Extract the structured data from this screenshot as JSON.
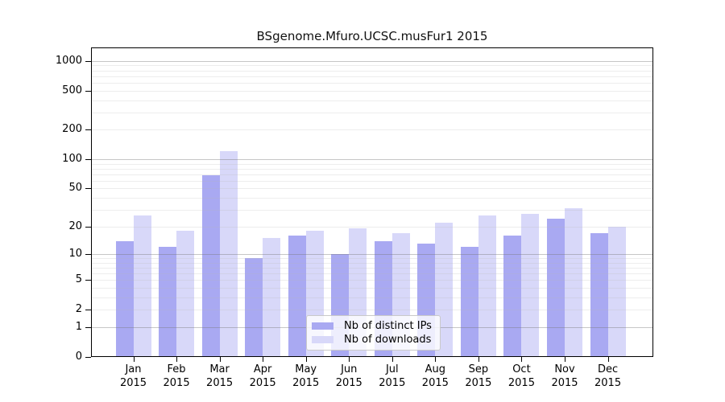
{
  "chart_data": {
    "type": "bar",
    "title": "BSgenome.Mfuro.UCSC.musFur1 2015",
    "categories": [
      "Jan",
      "Feb",
      "Mar",
      "Apr",
      "May",
      "Jun",
      "Jul",
      "Aug",
      "Sep",
      "Oct",
      "Nov",
      "Dec"
    ],
    "year": "2015",
    "series": [
      {
        "name": "Nb of distinct IPs",
        "color": "#a9a9f2",
        "values": [
          14,
          12,
          68,
          9,
          16,
          10,
          14,
          13,
          12,
          16,
          24,
          17
        ]
      },
      {
        "name": "Nb of downloads",
        "color": "#d8d8f9",
        "values": [
          26,
          18,
          122,
          15,
          18,
          19,
          17,
          22,
          26,
          27,
          31,
          20
        ]
      }
    ],
    "yscale": "log1p",
    "ylim": [
      0,
      1350
    ],
    "yticks": [
      {
        "label": "1000",
        "value": 1000
      },
      {
        "label": "500",
        "value": 500
      },
      {
        "label": "200",
        "value": 200
      },
      {
        "label": "100",
        "value": 100
      },
      {
        "label": "50",
        "value": 50
      },
      {
        "label": "20",
        "value": 20
      },
      {
        "label": "10",
        "value": 10
      },
      {
        "label": "5",
        "value": 5
      },
      {
        "label": "2",
        "value": 2
      },
      {
        "label": "1",
        "value": 1
      },
      {
        "label": "0",
        "value": 0
      }
    ],
    "grid": "log major+minor, horizontal only",
    "legend_position": "inside bottom-center",
    "legend_background": "rgba(255,255,255,0.8)"
  }
}
